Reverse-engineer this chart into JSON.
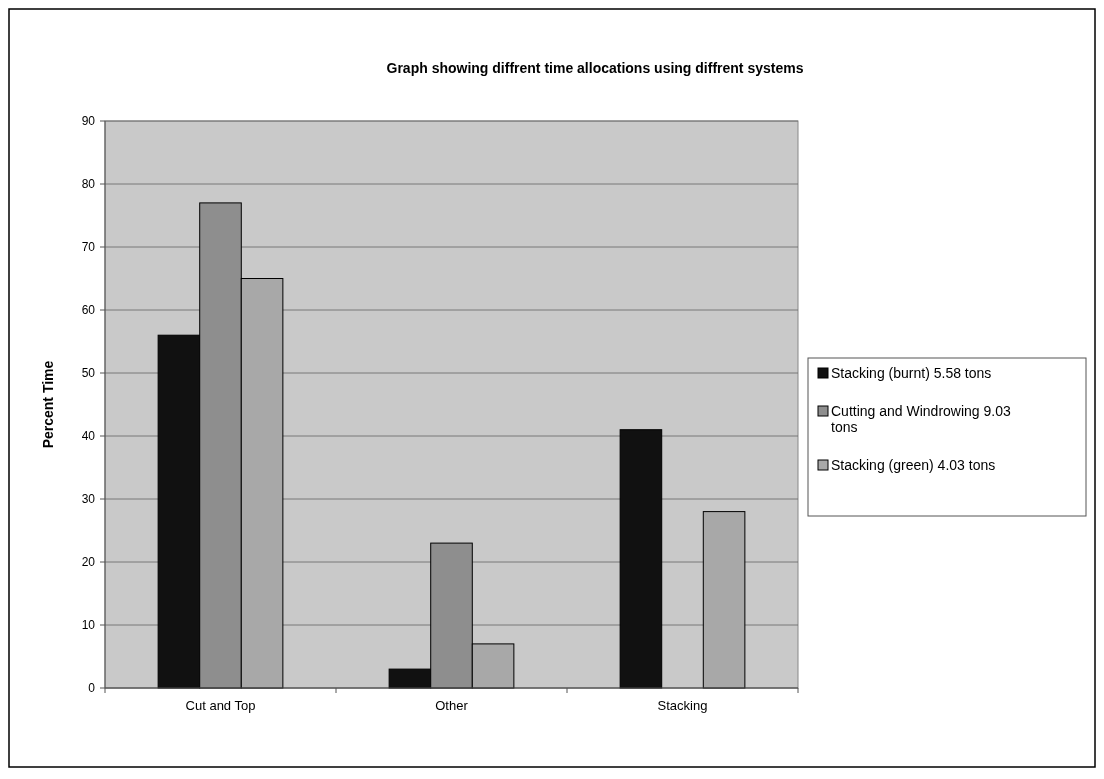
{
  "chart_data": {
    "type": "bar",
    "title": "Graph showing diffrent time allocations using diffrent systems",
    "ylabel": "Percent Time",
    "categories": [
      "Cut and Top",
      "Other",
      "Stacking"
    ],
    "series": [
      {
        "name": "Stacking (burnt) 5.58 tons",
        "color": "#111111",
        "values": [
          56,
          3,
          41
        ]
      },
      {
        "name": "Cutting and Windrowing 9.03 tons",
        "color": "#8e8e8e",
        "values": [
          77,
          23,
          null
        ]
      },
      {
        "name": "Stacking (green) 4.03 tons",
        "color": "#a8a8a8",
        "values": [
          65,
          7,
          28
        ]
      }
    ],
    "ylim": [
      0,
      90
    ],
    "yticks": [
      0,
      10,
      20,
      30,
      40,
      50,
      60,
      70,
      80,
      90
    ],
    "grid": "y",
    "legend": "right"
  }
}
